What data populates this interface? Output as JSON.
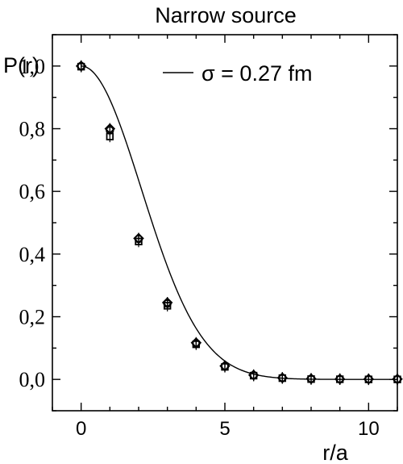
{
  "chart_data": {
    "type": "scatter",
    "title": "Narrow source",
    "xlabel": "r/a",
    "ylabel": "P(r)",
    "xlim": [
      -1,
      11
    ],
    "ylim": [
      -0.1,
      1.1
    ],
    "x_ticks": [
      0,
      5,
      10
    ],
    "x_tick_labels": [
      "0",
      "5",
      "10"
    ],
    "y_ticks": [
      0.0,
      0.2,
      0.4,
      0.6,
      0.8,
      1.0
    ],
    "y_tick_labels": [
      "0,0",
      "0,2",
      "0,4",
      "0,6",
      "0,8",
      "1,0"
    ],
    "grid": false,
    "legend_position": "top-right",
    "series": [
      {
        "name": "σ = 0.27 fm",
        "style": "line",
        "sigma_over_a": 2.1,
        "x_range": [
          0,
          11
        ]
      },
      {
        "marker": "diamond",
        "x": [
          0,
          1,
          2,
          3,
          4,
          5,
          6,
          7,
          8,
          9,
          10,
          11
        ],
        "values": [
          1.0,
          0.8,
          0.45,
          0.245,
          0.117,
          0.043,
          0.014,
          0.005,
          0.002,
          0.001,
          0.001,
          0.001
        ]
      },
      {
        "marker": "circle",
        "x": [
          0,
          1,
          2,
          3,
          4,
          5,
          6,
          7,
          8,
          9,
          10,
          11
        ],
        "values": [
          1.0,
          0.795,
          0.448,
          0.242,
          0.115,
          0.042,
          0.013,
          0.005,
          0.002,
          0.001,
          0.0005,
          0.0005
        ]
      },
      {
        "marker": "square",
        "x": [
          0,
          1,
          2,
          3,
          4,
          5,
          6,
          7,
          8,
          9,
          10,
          11
        ],
        "values": [
          0.998,
          0.775,
          0.44,
          0.235,
          0.112,
          0.04,
          0.012,
          0.004,
          0.001,
          0.0005,
          0.0,
          0.0
        ]
      }
    ]
  }
}
